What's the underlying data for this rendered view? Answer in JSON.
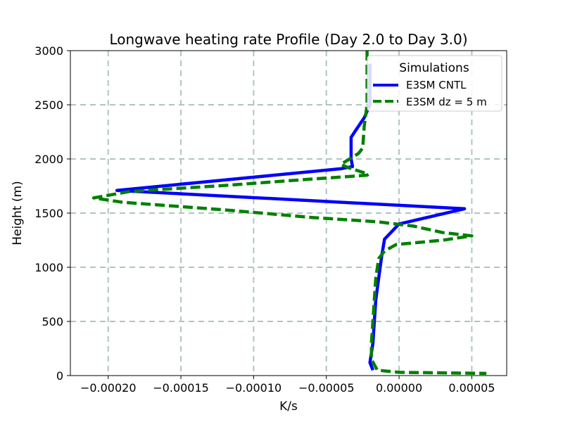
{
  "chart_data": {
    "type": "line",
    "title": "Longwave heating rate Profile (Day 2.0 to Day 3.0)",
    "xlabel": "K/s",
    "ylabel": "Height (m)",
    "xlim": [
      -0.000226,
      7.4e-05
    ],
    "ylim": [
      0,
      3000
    ],
    "xticks": [
      -0.0002,
      -0.00015,
      -0.0001,
      -5e-05,
      0.0,
      5e-05
    ],
    "xtick_labels": [
      "−0.00020",
      "−0.00015",
      "−0.00010",
      "−0.00005",
      "0.00000",
      "0.00005"
    ],
    "yticks": [
      0,
      500,
      1000,
      1500,
      2000,
      2500,
      3000
    ],
    "ytick_labels": [
      "0",
      "500",
      "1000",
      "1500",
      "2000",
      "2500",
      "3000"
    ],
    "grid": true,
    "legend_title": "Simulations",
    "legend_position": "top-right",
    "series": [
      {
        "name": "E3SM CNTL",
        "color": "#0000ff",
        "style": "solid",
        "points": [
          [
            -2e-05,
            2880
          ],
          [
            -2e-05,
            2500
          ],
          [
            -2.4e-05,
            2380
          ],
          [
            -2.9e-05,
            2280
          ],
          [
            -3.3e-05,
            2200
          ],
          [
            -3.3e-05,
            2100
          ],
          [
            -3.3e-05,
            2000
          ],
          [
            -3.2e-05,
            1930
          ],
          [
            -4e-05,
            1910
          ],
          [
            -0.000194,
            1710
          ],
          [
            4.5e-05,
            1540
          ],
          [
            0.0,
            1400
          ],
          [
            -1e-05,
            1260
          ],
          [
            -1.2e-05,
            1100
          ],
          [
            -1.4e-05,
            900
          ],
          [
            -1.6e-05,
            700
          ],
          [
            -1.7e-05,
            500
          ],
          [
            -1.8e-05,
            300
          ],
          [
            -2e-05,
            120
          ],
          [
            -1.8e-05,
            50
          ]
        ]
      },
      {
        "name": "E3SM dz = 5 m",
        "color": "#008000",
        "style": "dashed",
        "points": [
          [
            -2.2e-05,
            3000
          ],
          [
            -2.2e-05,
            2700
          ],
          [
            -2.2e-05,
            2500
          ],
          [
            -2.4e-05,
            2300
          ],
          [
            -2.5e-05,
            2100
          ],
          [
            -2.8e-05,
            2050
          ],
          [
            -4e-05,
            1950
          ],
          [
            -3.5e-05,
            1920
          ],
          [
            -2.1e-05,
            1860
          ],
          [
            -2.2e-05,
            1850
          ],
          [
            -7.5e-05,
            1800
          ],
          [
            -0.000115,
            1760
          ],
          [
            -0.000185,
            1700
          ],
          [
            -0.00021,
            1640
          ],
          [
            -0.00019,
            1600
          ],
          [
            -0.00012,
            1530
          ],
          [
            -6e-05,
            1460
          ],
          [
            -1.5e-05,
            1420
          ],
          [
            1e-05,
            1380
          ],
          [
            3e-05,
            1320
          ],
          [
            5e-05,
            1290
          ],
          [
            3e-05,
            1250
          ],
          [
            -2e-06,
            1210
          ],
          [
            -1e-05,
            1150
          ],
          [
            -1.4e-05,
            1080
          ],
          [
            -1.6e-05,
            900
          ],
          [
            -1.7e-05,
            700
          ],
          [
            -1.8e-05,
            500
          ],
          [
            -1.9e-05,
            300
          ],
          [
            -1.9e-05,
            150
          ],
          [
            -1.5e-05,
            50
          ],
          [
            0.0,
            30
          ],
          [
            6e-05,
            20
          ]
        ]
      }
    ]
  }
}
